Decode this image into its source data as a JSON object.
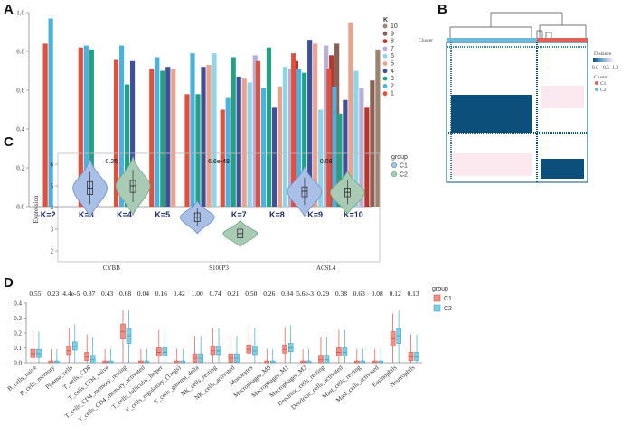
{
  "colors": {
    "heat_dark": "#0b4f7a",
    "heat_light": "#fbe9ef",
    "cluster_c1": "#e0605a",
    "cluster_c2": "#6dbad6",
    "violin_c1": "#a9bfe6",
    "violin_c2": "#a9cbb6",
    "box_c1": "#ef8f86",
    "box_c2": "#83cde3"
  },
  "chart_data": [
    {
      "panel": "A",
      "type": "bar",
      "categories": [
        "K=2",
        "K=3",
        "K=4",
        "K=5",
        "K=6",
        "K=7",
        "K=8",
        "K=9",
        "K=10"
      ],
      "ylim": [
        0,
        1.0
      ],
      "yticks": [
        "0.0",
        "0.2",
        "0.4",
        "0.6",
        "0.8",
        "1.0"
      ],
      "legend_title": "K",
      "legend": [
        {
          "label": "10",
          "color": "#9c8570"
        },
        {
          "label": "9",
          "color": "#8a5f54"
        },
        {
          "label": "8",
          "color": "#b8362d"
        },
        {
          "label": "7",
          "color": "#b9aed6"
        },
        {
          "label": "6",
          "color": "#8fd4e8"
        },
        {
          "label": "5",
          "color": "#e8a28e"
        },
        {
          "label": "4",
          "color": "#3f4f9a"
        },
        {
          "label": "3",
          "color": "#22a283"
        },
        {
          "label": "2",
          "color": "#4ab2dc"
        },
        {
          "label": "1",
          "color": "#e0503f"
        }
      ],
      "groups": [
        [
          0.84,
          0.97
        ],
        [
          0.82,
          0.83,
          0.81
        ],
        [
          0.76,
          0.83,
          0.63,
          0.75
        ],
        [
          0.71,
          0.77,
          0.7,
          0.72,
          0.71
        ],
        [
          0.58,
          0.79,
          0.58,
          0.72,
          0.73,
          0.79
        ],
        [
          0.5,
          0.56,
          0.77,
          0.67,
          0.66,
          0.64,
          0.78
        ],
        [
          0.75,
          0.61,
          0.82,
          0.51,
          0.62,
          0.72,
          0.71,
          0.75
        ],
        [
          0.79,
          0.71,
          0.69,
          0.86,
          0.84,
          0.5,
          0.83,
          0.78,
          0.84
        ],
        [
          0.71,
          0.62,
          0.48,
          0.55,
          0.95,
          0.7,
          0.61,
          0.51,
          0.65,
          0.81
        ]
      ]
    },
    {
      "panel": "B",
      "type": "heatmap",
      "label_cluster": "Cluster",
      "legend_title": "Distance",
      "legend_ticks": [
        "0.0",
        "0.5",
        "1.0"
      ],
      "cluster_legend_title": "Cluster",
      "clusters": [
        "C1",
        "C2"
      ]
    },
    {
      "panel": "C",
      "type": "violin",
      "ylabel": "Expression",
      "ylim": [
        1.5,
        6.5
      ],
      "yticks": [
        "2",
        "3",
        "4",
        "5",
        "6"
      ],
      "categories": [
        "CYBB",
        "S100P3",
        "ACSL4"
      ],
      "pvalues": [
        "0.25",
        "6.6e-48",
        "0.08"
      ],
      "legend_title": "group",
      "groups": [
        "C1",
        "C2"
      ],
      "series": [
        {
          "name": "C1",
          "medians": [
            4.9,
            3.55,
            4.75
          ],
          "q1": [
            4.6,
            3.35,
            4.5
          ],
          "q3": [
            5.2,
            3.75,
            4.95
          ]
        },
        {
          "name": "C2",
          "medians": [
            5.0,
            2.8,
            4.7
          ],
          "q1": [
            4.7,
            2.6,
            4.5
          ],
          "q3": [
            5.25,
            3.0,
            4.9
          ]
        }
      ]
    },
    {
      "panel": "D",
      "type": "box",
      "ylim": [
        0.0,
        0.4
      ],
      "yticks": [
        "0.0",
        "0.1",
        "0.2",
        "0.3",
        "0.4"
      ],
      "legend_title": "group",
      "groups": [
        "C1",
        "C2"
      ],
      "categories": [
        "B_cells_naive",
        "B_cells_memory",
        "Plasma_cells",
        "T_cells_CD8",
        "T_cells_CD4_naive",
        "T_cells_CD4_memory_resting",
        "T_cells_CD4_memory_activated",
        "T_cells_follicular_helper",
        "T_cells_regulatory_(Tregs)",
        "T_cells_gamma_delta",
        "NK_cells_resting",
        "NK_cells_activated",
        "Monocytes",
        "Macrophages_M0",
        "Macrophages_M1",
        "Macrophages_M2",
        "Dendritic_cells_resting",
        "Dendritic_cells_activated",
        "Mast_cells_resting",
        "Mast_cells_activated",
        "Eosinophils",
        "Neutrophils"
      ],
      "pvalues": [
        "0.55",
        "0.23",
        "4.4e-5",
        "0.87",
        "0.43",
        "0.68",
        "0.04",
        "0.16",
        "0.42",
        "1.00",
        "0.74",
        "0.21",
        "0.50",
        "0.26",
        "0.84",
        "5.6e-3",
        "0.29",
        "0.38",
        "0.63",
        "0.08",
        "0.12",
        "0.13"
      ],
      "series": [
        {
          "name": "C1",
          "medians": [
            0.06,
            0.0,
            0.08,
            0.04,
            0.0,
            0.21,
            0.0,
            0.07,
            0.0,
            0.03,
            0.08,
            0.03,
            0.09,
            0.0,
            0.09,
            0.0,
            0.02,
            0.07,
            0.0,
            0.0,
            0.16,
            0.04
          ]
        },
        {
          "name": "C2",
          "medians": [
            0.06,
            0.0,
            0.11,
            0.02,
            0.0,
            0.18,
            0.0,
            0.07,
            0.0,
            0.03,
            0.08,
            0.03,
            0.08,
            0.0,
            0.1,
            0.0,
            0.02,
            0.07,
            0.0,
            0.0,
            0.18,
            0.04
          ]
        }
      ]
    }
  ]
}
